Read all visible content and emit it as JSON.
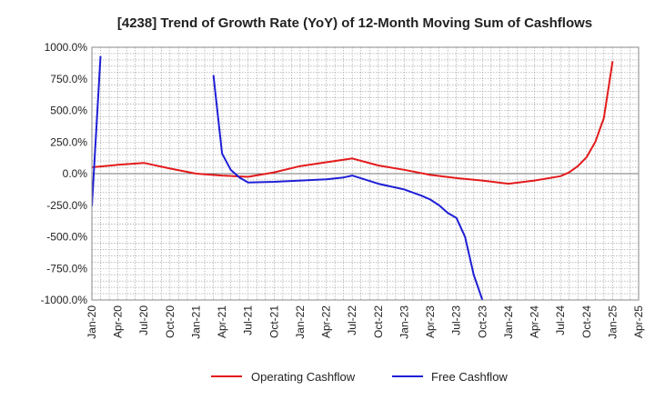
{
  "chart_data": {
    "type": "line",
    "title": "[4238]  Trend of Growth Rate (YoY) of 12-Month Moving Sum of Cashflows",
    "xlabel": "",
    "ylabel": "",
    "x_ticks": [
      "Jan-20",
      "Apr-20",
      "Jul-20",
      "Oct-20",
      "Jan-21",
      "Apr-21",
      "Jul-21",
      "Oct-21",
      "Jan-22",
      "Apr-22",
      "Jul-22",
      "Oct-22",
      "Jan-23",
      "Apr-23",
      "Jul-23",
      "Oct-23",
      "Jan-24",
      "Apr-24",
      "Jul-24",
      "Oct-24",
      "Jan-25",
      "Apr-25"
    ],
    "y_ticks": [
      "1000.0%",
      "750.0%",
      "500.0%",
      "250.0%",
      "0.0%",
      "-250.0%",
      "-500.0%",
      "-750.0%",
      "-1000.0%"
    ],
    "xlim": [
      "2020-01",
      "2025-04"
    ],
    "ylim": [
      -1000,
      1000
    ],
    "y_unit": "%",
    "grid": true,
    "legend_position": "bottom",
    "colors": {
      "Operating Cashflow": "#e31a1c",
      "Free Cashflow": "#1f1fd6"
    },
    "series": [
      {
        "name": "Operating Cashflow",
        "points": [
          [
            "2020-01",
            50
          ],
          [
            "2020-04",
            70
          ],
          [
            "2020-07",
            85
          ],
          [
            "2020-10",
            40
          ],
          [
            "2021-01",
            0
          ],
          [
            "2021-04",
            -15
          ],
          [
            "2021-07",
            -25
          ],
          [
            "2021-10",
            10
          ],
          [
            "2022-01",
            60
          ],
          [
            "2022-04",
            90
          ],
          [
            "2022-07",
            120
          ],
          [
            "2022-10",
            65
          ],
          [
            "2023-01",
            30
          ],
          [
            "2023-04",
            -10
          ],
          [
            "2023-07",
            -35
          ],
          [
            "2023-10",
            -55
          ],
          [
            "2024-01",
            -80
          ],
          [
            "2024-04",
            -55
          ],
          [
            "2024-07",
            -20
          ],
          [
            "2024-08",
            10
          ],
          [
            "2024-09",
            60
          ],
          [
            "2024-10",
            130
          ],
          [
            "2024-11",
            250
          ],
          [
            "2024-12",
            440
          ],
          [
            "2025-01",
            890
          ]
        ]
      },
      {
        "name": "Free Cashflow",
        "segments": [
          [
            [
              "2020-01",
              -260
            ],
            [
              "2020-02",
              930
            ]
          ],
          [
            [
              "2021-03",
              780
            ],
            [
              "2021-04",
              160
            ],
            [
              "2021-05",
              30
            ],
            [
              "2021-06",
              -30
            ],
            [
              "2021-07",
              -70
            ],
            [
              "2021-10",
              -65
            ],
            [
              "2022-01",
              -55
            ],
            [
              "2022-04",
              -45
            ],
            [
              "2022-06",
              -30
            ],
            [
              "2022-07",
              -15
            ],
            [
              "2022-10",
              -80
            ],
            [
              "2023-01",
              -125
            ],
            [
              "2023-03",
              -175
            ],
            [
              "2023-04",
              -205
            ],
            [
              "2023-05",
              -250
            ],
            [
              "2023-06",
              -310
            ],
            [
              "2023-07",
              -350
            ],
            [
              "2023-08",
              -500
            ],
            [
              "2023-09",
              -800
            ],
            [
              "2023-10",
              -1000
            ]
          ]
        ]
      }
    ]
  }
}
